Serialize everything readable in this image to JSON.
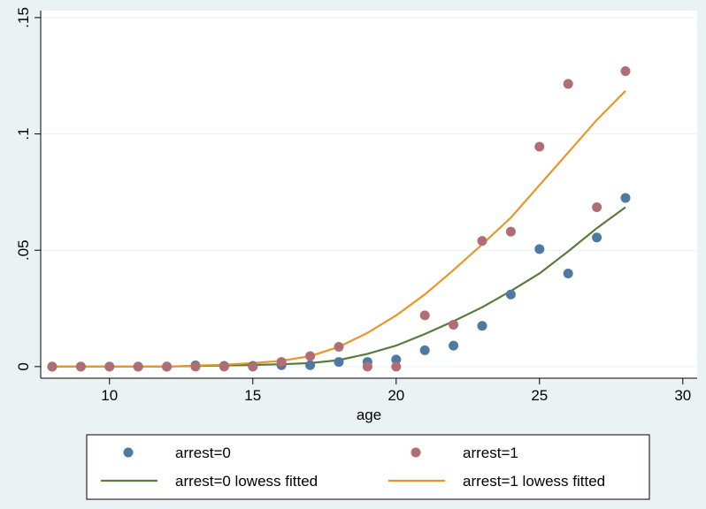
{
  "chart_data": {
    "type": "scatter",
    "xlabel": "age",
    "ylabel": "",
    "xlim": [
      7.6,
      30.5
    ],
    "ylim": [
      -0.005,
      0.153
    ],
    "x_ticks": [
      10,
      15,
      20,
      25,
      30
    ],
    "x_tick_labels": [
      "10",
      "15",
      "20",
      "25",
      "30"
    ],
    "y_ticks": [
      0,
      0.05,
      0.1,
      0.15
    ],
    "y_tick_labels": [
      "0",
      ".05",
      ".1",
      ".15"
    ],
    "grid": true,
    "legend_placement": "bottom",
    "series": [
      {
        "name": "arrest=0",
        "kind": "scatter",
        "color": "#4e7aa1",
        "x": [
          8,
          9,
          10,
          11,
          12,
          13,
          14,
          15,
          16,
          17,
          18,
          19,
          20,
          21,
          22,
          23,
          24,
          25,
          26,
          27,
          28
        ],
        "y": [
          0,
          0,
          0,
          0,
          0,
          0.0005,
          0.0003,
          0.0003,
          0.0006,
          0.0006,
          0.002,
          0.002,
          0.003,
          0.007,
          0.009,
          0.0175,
          0.031,
          0.0505,
          0.04,
          0.0555,
          0.0725
        ]
      },
      {
        "name": "arrest=1",
        "kind": "scatter",
        "color": "#b06e74",
        "x": [
          8,
          9,
          10,
          11,
          12,
          13,
          14,
          15,
          16,
          17,
          18,
          19,
          20,
          21,
          22,
          23,
          24,
          25,
          26,
          27,
          28
        ],
        "y": [
          0,
          0,
          0,
          0,
          0,
          0,
          0,
          0,
          0.002,
          0.0045,
          0.0085,
          0,
          0,
          0.022,
          0.018,
          0.054,
          0.058,
          0.0945,
          0.1215,
          0.0685,
          0.127
        ]
      },
      {
        "name": "arrest=0 lowess fitted",
        "kind": "line",
        "color": "#5a7b3c",
        "x": [
          8,
          10,
          12,
          14,
          15,
          16,
          17,
          18,
          19,
          20,
          21,
          22,
          23,
          24,
          25,
          26,
          27,
          28
        ],
        "y": [
          0,
          0,
          0,
          0.0005,
          0.0007,
          0.001,
          0.0015,
          0.0028,
          0.0055,
          0.009,
          0.014,
          0.0195,
          0.0255,
          0.0325,
          0.04,
          0.0495,
          0.0595,
          0.0685
        ]
      },
      {
        "name": "arrest=1 lowess fitted",
        "kind": "line",
        "color": "#e8962b",
        "x": [
          8,
          10,
          12,
          14,
          15,
          16,
          17,
          18,
          19,
          20,
          21,
          22,
          23,
          24,
          25,
          26,
          27,
          28
        ],
        "y": [
          0,
          0,
          0,
          0.0008,
          0.0015,
          0.0025,
          0.0045,
          0.0085,
          0.0145,
          0.022,
          0.031,
          0.0415,
          0.0525,
          0.064,
          0.078,
          0.092,
          0.106,
          0.1185
        ]
      }
    ],
    "legend": [
      {
        "label": "arrest=0",
        "symbol": "dot",
        "color": "#4e7aa1"
      },
      {
        "label": "arrest=1",
        "symbol": "dot",
        "color": "#b06e74"
      },
      {
        "label": "arrest=0 lowess fitted",
        "symbol": "line",
        "color": "#5a7b3c"
      },
      {
        "label": "arrest=1 lowess fitted",
        "symbol": "line",
        "color": "#e8962b"
      }
    ]
  }
}
